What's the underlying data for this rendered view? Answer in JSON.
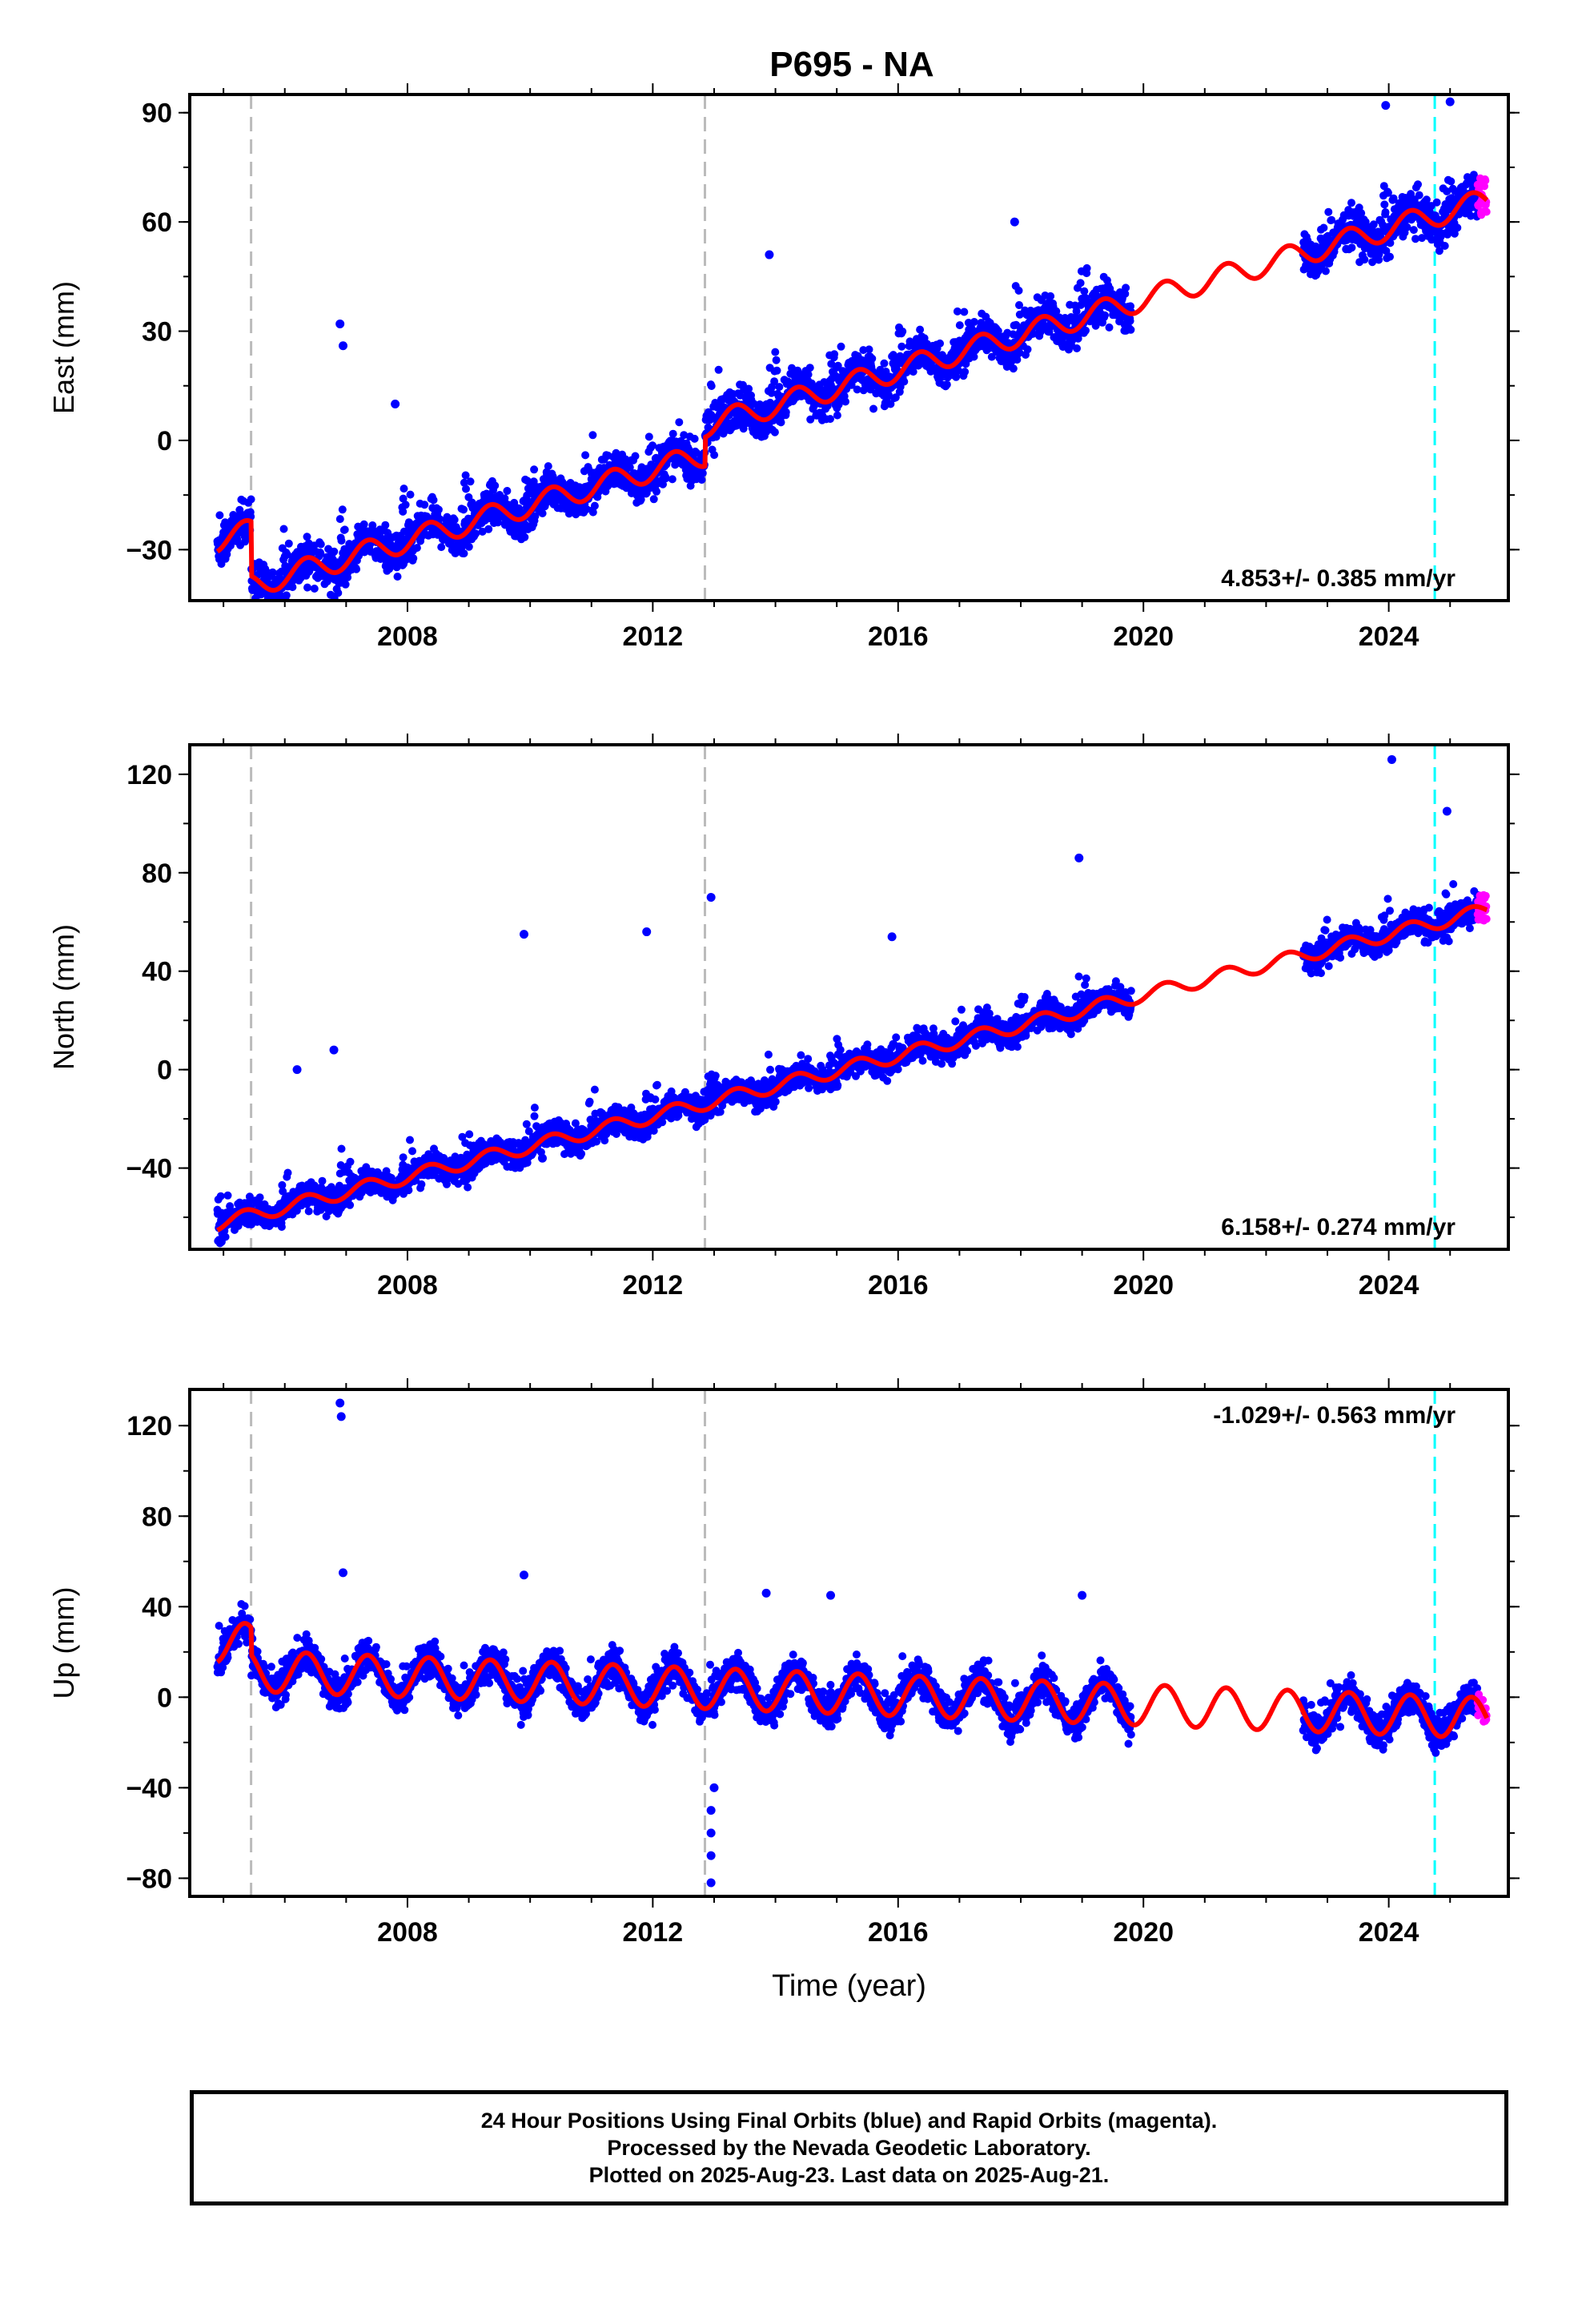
{
  "title": "P695 - NA",
  "chart_data": [
    {
      "type": "scatter",
      "panel": "east",
      "ylabel": "East (mm)",
      "xlabel": "",
      "rate_text": "4.853+/- 0.385 mm/yr",
      "xlim": [
        2004.45,
        2025.95
      ],
      "ylim": [
        -44,
        95
      ],
      "yticks": [
        -30,
        0,
        30,
        60,
        90
      ],
      "xticks": [
        2008,
        2012,
        2016,
        2020,
        2024
      ],
      "event_lines_gray": [
        2005.45,
        2012.85
      ],
      "event_line_cyan": 2024.75,
      "trend_start": -27,
      "rate": 4.853,
      "seasonal_amp": 3.2,
      "offsets": [
        {
          "t": 2005.45,
          "dy": -15
        },
        {
          "t": 2012.85,
          "dy": 8
        }
      ],
      "final_range": [
        2004.9,
        2025.45
      ],
      "gap": [
        2019.8,
        2022.6
      ],
      "rapid_range": [
        2025.45,
        2025.6
      ],
      "spikes": [
        [
          2006.9,
          32
        ],
        [
          2006.95,
          26
        ],
        [
          2007.8,
          10
        ],
        [
          2013.9,
          51
        ],
        [
          2017.9,
          60
        ],
        [
          2023.95,
          92
        ],
        [
          2025.0,
          93
        ]
      ]
    },
    {
      "type": "scatter",
      "panel": "north",
      "ylabel": "North (mm)",
      "xlabel": "",
      "rate_text": "6.158+/- 0.274 mm/yr",
      "xlim": [
        2004.45,
        2025.95
      ],
      "ylim": [
        -73,
        132
      ],
      "yticks": [
        -40,
        0,
        40,
        80,
        120
      ],
      "xticks": [
        2008,
        2012,
        2016,
        2020,
        2024
      ],
      "event_lines_gray": [
        2005.45,
        2012.85
      ],
      "event_line_cyan": 2024.75,
      "trend_start": -62,
      "rate": 6.158,
      "seasonal_amp": 2.8,
      "offsets": [],
      "final_range": [
        2004.9,
        2025.45
      ],
      "gap": [
        2019.8,
        2022.6
      ],
      "rapid_range": [
        2025.45,
        2025.6
      ],
      "spikes": [
        [
          2009.9,
          55
        ],
        [
          2011.9,
          56
        ],
        [
          2012.95,
          70
        ],
        [
          2015.9,
          54
        ],
        [
          2018.95,
          86
        ],
        [
          2024.05,
          126
        ],
        [
          2024.95,
          105
        ],
        [
          2006.2,
          0
        ],
        [
          2006.8,
          8
        ],
        [
          2010.2,
          -36
        ]
      ]
    },
    {
      "type": "scatter",
      "panel": "up",
      "ylabel": "Up (mm)",
      "xlabel": "Time (year)",
      "rate_text": "-1.029+/- 0.563 mm/yr",
      "xlim": [
        2004.45,
        2025.95
      ],
      "ylim": [
        -88,
        136
      ],
      "yticks": [
        -80,
        -40,
        0,
        40,
        80,
        120
      ],
      "xticks": [
        2008,
        2012,
        2016,
        2020,
        2024
      ],
      "event_lines_gray": [
        2005.45,
        2012.85
      ],
      "event_line_cyan": 2024.75,
      "trend_start": 24,
      "rate": -1.029,
      "seasonal_amp": 9,
      "offsets": [
        {
          "t": 2005.45,
          "dy": -12
        }
      ],
      "final_range": [
        2004.9,
        2025.45
      ],
      "gap": [
        2019.8,
        2022.6
      ],
      "rapid_range": [
        2025.45,
        2025.6
      ],
      "spikes": [
        [
          2006.9,
          130
        ],
        [
          2006.92,
          124
        ],
        [
          2006.95,
          55
        ],
        [
          2012.95,
          -82
        ],
        [
          2012.95,
          -70
        ],
        [
          2012.95,
          -60
        ],
        [
          2012.95,
          -50
        ],
        [
          2013.0,
          -40
        ],
        [
          2013.85,
          46
        ],
        [
          2019.0,
          45
        ],
        [
          2014.9,
          45
        ],
        [
          2009.9,
          54
        ]
      ]
    }
  ],
  "colors": {
    "final_orbits": "#0000ff",
    "rapid_orbits": "#ff00ff",
    "model_fit": "#ff0000",
    "gray_event": "#bbbbbb",
    "cyan_event": "#00ffff"
  },
  "footer": {
    "line1": "24 Hour Positions Using Final Orbits (blue) and Rapid Orbits (magenta).",
    "line2": "Processed by the Nevada Geodetic Laboratory.",
    "line3": "Plotted on 2025-Aug-23. Last data on 2025-Aug-21."
  }
}
